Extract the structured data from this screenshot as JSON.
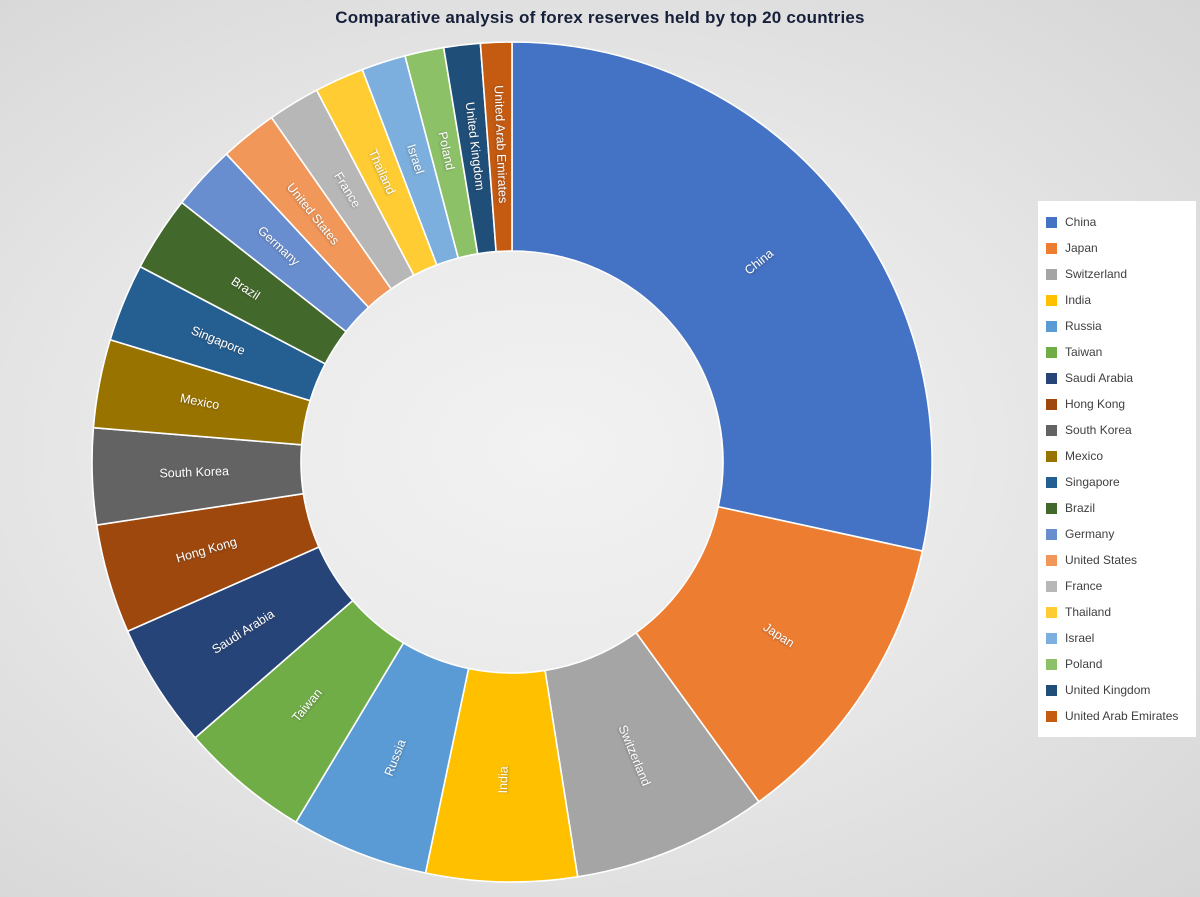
{
  "chart_data": {
    "type": "pie",
    "subtype": "doughnut",
    "title": "Comparative analysis of forex reserves held by top 20 countries",
    "categories": [
      "China",
      "Japan",
      "Switzerland",
      "India",
      "Russia",
      "Taiwan",
      "Saudi Arabia",
      "Hong Kong",
      "South Korea",
      "Mexico",
      "Singapore",
      "Brazil",
      "Germany",
      "United States",
      "France",
      "Thailand",
      "Israel",
      "Poland",
      "United Kingdom",
      "United Arab Emirates"
    ],
    "values": [
      28.4,
      11.6,
      7.5,
      5.8,
      5.3,
      5.0,
      4.8,
      4.2,
      3.7,
      3.4,
      3.0,
      2.9,
      2.5,
      2.2,
      2.0,
      1.9,
      1.7,
      1.5,
      1.4,
      1.2
    ],
    "values_unit": "percent share of total (estimated from slice angles; no numeric labels shown in chart)",
    "colors": [
      "#4472C4",
      "#ED7D31",
      "#A5A5A5",
      "#FFC000",
      "#5B9BD5",
      "#70AD47",
      "#264478",
      "#9E480E",
      "#636363",
      "#997300",
      "#255E91",
      "#43682B",
      "#698ED0",
      "#F1975A",
      "#B7B7B7",
      "#FFCD33",
      "#7CAFDD",
      "#8CC168",
      "#1F4E79",
      "#C55A11"
    ],
    "start_angle_deg": 0,
    "direction": "clockwise",
    "donut_hole_ratio": 0.5,
    "slice_labels": "category names drawn radially on slices in white",
    "legend_position": "right",
    "grid": "off"
  },
  "layout_colors": {
    "background": "#e9e9e9",
    "legend_background": "#ffffff",
    "title_color": "#17203a",
    "slice_label_color": "#ffffff",
    "slice_border_color": "#ffffff"
  }
}
